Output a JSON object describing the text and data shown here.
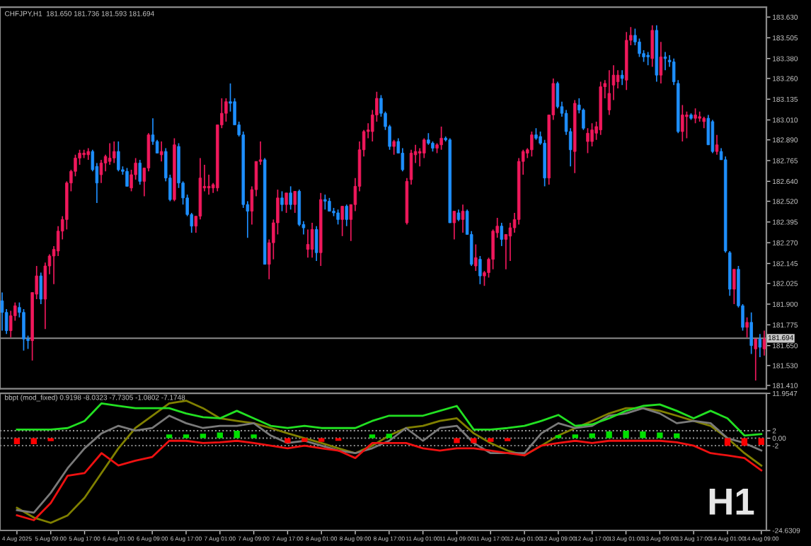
{
  "chart_data": [
    {
      "type": "candlestick",
      "title": "CHFJPY,H1  181.650 181.736 181.593 181.694",
      "tick_labels": "y",
      "categories": [
        null,
        null,
        null,
        null,
        null,
        null,
        null,
        null,
        null,
        null,
        null,
        null,
        null,
        null,
        null,
        null,
        null,
        null,
        null,
        null,
        null,
        null,
        null,
        null,
        null,
        null,
        null,
        null,
        null,
        null,
        null,
        null,
        null,
        null,
        null,
        null,
        null,
        null,
        null,
        null,
        null,
        null,
        null,
        null,
        null,
        null,
        null,
        null,
        null,
        null,
        null,
        null,
        null,
        null,
        null,
        null,
        null,
        null,
        null,
        null,
        null,
        null,
        null,
        null,
        null,
        null,
        null,
        null,
        null,
        null,
        null,
        null,
        null,
        null,
        null,
        null,
        null,
        null,
        null,
        null,
        null,
        null,
        null,
        null,
        null,
        null,
        null,
        null,
        null,
        null,
        null,
        null,
        null,
        null,
        null,
        null,
        null,
        null,
        null,
        null,
        null,
        null,
        null,
        null,
        null,
        null,
        null,
        null,
        null,
        null,
        null,
        null,
        null,
        null,
        null,
        null,
        null,
        null,
        null,
        null,
        null,
        null,
        null,
        null,
        null,
        null,
        null,
        null,
        null,
        null,
        null,
        null,
        null,
        null,
        null,
        null,
        null,
        null,
        null,
        null,
        null,
        null,
        null,
        null,
        null,
        null,
        null,
        null,
        null,
        null,
        null,
        null,
        null,
        null,
        null,
        null,
        null,
        null,
        null,
        null,
        null,
        null,
        null,
        null,
        null,
        null,
        null,
        null,
        null,
        null,
        null,
        null,
        null,
        null,
        null,
        null,
        null,
        null
      ],
      "ohlc": [
        [
          181.92,
          181.97,
          181.74,
          181.85
        ],
        [
          181.85,
          181.87,
          181.72,
          181.74
        ],
        [
          181.74,
          181.86,
          181.7,
          181.83
        ],
        [
          181.83,
          181.91,
          181.8,
          181.89
        ],
        [
          181.88,
          181.91,
          181.82,
          181.85
        ],
        [
          181.85,
          181.87,
          181.62,
          181.69
        ],
        [
          181.69,
          181.71,
          181.63,
          181.68
        ],
        [
          181.68,
          181.97,
          181.56,
          181.97
        ],
        [
          181.96,
          182.13,
          181.93,
          182.07
        ],
        [
          182.07,
          182.09,
          181.9,
          181.93
        ],
        [
          181.93,
          182.15,
          181.75,
          182.13
        ],
        [
          182.13,
          182.2,
          182.08,
          182.19
        ],
        [
          182.19,
          182.25,
          182.02,
          182.23
        ],
        [
          182.22,
          182.37,
          182.19,
          182.34
        ],
        [
          182.34,
          182.43,
          182.29,
          182.41
        ],
        [
          182.41,
          182.64,
          182.35,
          182.63
        ],
        [
          182.63,
          182.71,
          182.58,
          182.7
        ],
        [
          182.7,
          182.8,
          182.67,
          182.78
        ],
        [
          182.78,
          182.83,
          182.74,
          182.81
        ],
        [
          182.8,
          182.83,
          182.78,
          182.81
        ],
        [
          182.8,
          182.84,
          182.77,
          182.82
        ],
        [
          182.82,
          182.83,
          182.7,
          182.71
        ],
        [
          182.73,
          182.75,
          182.51,
          182.63
        ],
        [
          182.68,
          182.77,
          182.63,
          182.75
        ],
        [
          182.75,
          182.8,
          182.7,
          182.79
        ],
        [
          182.76,
          182.87,
          182.74,
          182.78
        ],
        [
          182.78,
          182.88,
          182.75,
          182.82
        ],
        [
          182.82,
          182.88,
          182.7,
          182.71
        ],
        [
          182.71,
          182.73,
          182.68,
          182.7
        ],
        [
          182.7,
          182.72,
          182.61,
          182.61
        ],
        [
          182.6,
          182.71,
          182.58,
          182.68
        ],
        [
          182.68,
          182.78,
          182.65,
          182.75
        ],
        [
          182.75,
          182.77,
          182.62,
          182.64
        ],
        [
          182.64,
          182.72,
          182.55,
          182.72
        ],
        [
          182.72,
          182.93,
          182.7,
          182.92
        ],
        [
          182.92,
          183.02,
          182.86,
          182.88
        ],
        [
          182.88,
          182.89,
          182.81,
          182.81
        ],
        [
          182.8,
          182.88,
          182.76,
          182.82
        ],
        [
          182.82,
          182.84,
          182.64,
          182.66
        ],
        [
          182.66,
          182.68,
          182.52,
          182.53
        ],
        [
          182.53,
          182.9,
          182.52,
          182.86
        ],
        [
          182.85,
          182.87,
          182.6,
          182.63
        ],
        [
          182.63,
          182.64,
          182.5,
          182.54
        ],
        [
          182.54,
          182.56,
          182.43,
          182.44
        ],
        [
          182.44,
          182.45,
          182.33,
          182.37
        ],
        [
          182.37,
          182.43,
          182.33,
          182.43
        ],
        [
          182.43,
          182.78,
          182.41,
          182.66
        ],
        [
          182.6,
          182.74,
          182.58,
          182.61
        ],
        [
          182.6,
          182.68,
          182.56,
          182.61
        ],
        [
          182.6,
          182.63,
          182.57,
          182.62
        ],
        [
          182.6,
          182.98,
          182.58,
          182.98
        ],
        [
          182.98,
          183.14,
          182.96,
          183.05
        ],
        [
          183.05,
          183.14,
          183.0,
          183.12
        ],
        [
          183.12,
          183.23,
          183.06,
          183.11
        ],
        [
          183.12,
          183.14,
          182.98,
          182.98
        ],
        [
          182.98,
          183.0,
          182.91,
          182.92
        ],
        [
          182.92,
          182.94,
          182.48,
          182.5
        ],
        [
          182.5,
          182.52,
          182.3,
          182.46
        ],
        [
          182.46,
          182.61,
          182.38,
          182.59
        ],
        [
          182.59,
          182.76,
          182.55,
          182.76
        ],
        [
          182.76,
          182.88,
          182.74,
          182.77
        ],
        [
          182.77,
          182.78,
          182.14,
          182.14
        ],
        [
          182.14,
          182.29,
          182.05,
          182.27
        ],
        [
          182.27,
          182.41,
          182.17,
          182.39
        ],
        [
          182.39,
          182.59,
          182.32,
          182.54
        ],
        [
          182.54,
          182.58,
          182.46,
          182.5
        ],
        [
          182.5,
          182.57,
          182.45,
          182.57
        ],
        [
          182.57,
          182.61,
          182.47,
          182.5
        ],
        [
          182.5,
          182.58,
          182.45,
          182.58
        ],
        [
          182.58,
          182.59,
          182.37,
          182.38
        ],
        [
          182.38,
          182.4,
          182.32,
          182.36
        ],
        [
          182.23,
          182.35,
          182.18,
          182.26
        ],
        [
          182.23,
          182.39,
          182.18,
          182.35
        ],
        [
          182.35,
          182.37,
          182.16,
          182.21
        ],
        [
          182.21,
          182.57,
          182.13,
          182.53
        ],
        [
          182.53,
          182.56,
          182.47,
          182.52
        ],
        [
          182.52,
          182.54,
          182.46,
          182.46
        ],
        [
          182.46,
          182.48,
          182.43,
          182.45
        ],
        [
          182.45,
          182.47,
          182.38,
          182.41
        ],
        [
          182.41,
          182.49,
          182.31,
          182.49
        ],
        [
          182.49,
          182.5,
          182.37,
          182.41
        ],
        [
          182.41,
          182.5,
          182.28,
          182.5
        ],
        [
          182.5,
          182.66,
          182.46,
          182.61
        ],
        [
          182.61,
          182.88,
          182.58,
          182.83
        ],
        [
          182.83,
          182.95,
          182.79,
          182.94
        ],
        [
          182.94,
          182.99,
          182.9,
          182.95
        ],
        [
          182.94,
          183.07,
          182.88,
          183.04
        ],
        [
          183.04,
          183.18,
          183.0,
          183.14
        ],
        [
          183.14,
          183.16,
          183.03,
          183.05
        ],
        [
          183.05,
          183.06,
          182.95,
          182.97
        ],
        [
          182.97,
          182.98,
          182.83,
          182.85
        ],
        [
          182.85,
          182.89,
          182.8,
          182.88
        ],
        [
          182.88,
          182.9,
          182.81,
          182.81
        ],
        [
          182.81,
          182.84,
          182.7,
          182.71
        ],
        [
          182.39,
          182.66,
          182.38,
          182.64
        ],
        [
          182.65,
          182.83,
          182.62,
          182.81
        ],
        [
          182.8,
          182.86,
          182.75,
          182.82
        ],
        [
          182.81,
          182.84,
          182.73,
          182.82
        ],
        [
          182.81,
          182.9,
          182.78,
          182.89
        ],
        [
          182.89,
          182.93,
          182.86,
          182.87
        ],
        [
          182.87,
          182.88,
          182.82,
          182.84
        ],
        [
          182.84,
          182.87,
          182.81,
          182.86
        ],
        [
          182.86,
          182.97,
          182.83,
          182.9
        ],
        [
          182.9,
          182.91,
          182.88,
          182.89
        ],
        [
          182.89,
          182.9,
          182.39,
          182.39
        ],
        [
          182.39,
          182.46,
          182.29,
          182.46
        ],
        [
          182.45,
          182.47,
          182.4,
          182.41
        ],
        [
          182.41,
          182.5,
          182.33,
          182.46
        ],
        [
          182.46,
          182.47,
          182.32,
          182.32
        ],
        [
          182.32,
          182.34,
          182.13,
          182.14
        ],
        [
          182.13,
          182.26,
          182.1,
          182.18
        ],
        [
          182.17,
          182.19,
          182.02,
          182.07
        ],
        [
          182.07,
          182.1,
          182.01,
          182.09
        ],
        [
          182.09,
          182.18,
          182.06,
          182.17
        ],
        [
          182.17,
          182.35,
          182.11,
          182.34
        ],
        [
          182.33,
          182.42,
          182.3,
          182.37
        ],
        [
          182.37,
          182.39,
          182.25,
          182.29
        ],
        [
          182.29,
          182.32,
          182.11,
          182.32
        ],
        [
          182.31,
          182.39,
          182.16,
          182.36
        ],
        [
          182.36,
          182.45,
          182.33,
          182.41
        ],
        [
          182.41,
          182.78,
          182.38,
          182.76
        ],
        [
          182.76,
          182.83,
          182.68,
          182.82
        ],
        [
          182.81,
          182.84,
          182.78,
          182.83
        ],
        [
          182.83,
          182.94,
          182.79,
          182.92
        ],
        [
          182.92,
          182.96,
          182.89,
          182.9
        ],
        [
          182.91,
          182.94,
          182.86,
          182.87
        ],
        [
          182.87,
          182.89,
          182.61,
          182.66
        ],
        [
          182.66,
          183.04,
          182.62,
          183.04
        ],
        [
          183.04,
          183.26,
          183.01,
          183.23
        ],
        [
          183.23,
          183.24,
          183.08,
          183.09
        ],
        [
          183.09,
          183.12,
          183.03,
          183.05
        ],
        [
          183.05,
          183.07,
          182.92,
          182.94
        ],
        [
          182.94,
          182.96,
          182.73,
          182.83
        ],
        [
          182.82,
          183.13,
          182.69,
          183.11
        ],
        [
          183.1,
          183.14,
          183.05,
          183.07
        ],
        [
          183.07,
          183.08,
          182.95,
          182.96
        ],
        [
          182.88,
          182.96,
          182.81,
          182.93
        ],
        [
          182.88,
          182.99,
          182.85,
          182.95
        ],
        [
          182.93,
          183.0,
          182.89,
          182.97
        ],
        [
          182.95,
          183.24,
          182.92,
          183.21
        ],
        [
          183.21,
          183.25,
          183.14,
          183.23
        ],
        [
          183.07,
          183.31,
          183.04,
          183.17
        ],
        [
          183.22,
          183.34,
          183.13,
          183.28
        ],
        [
          183.24,
          183.31,
          183.2,
          183.28
        ],
        [
          183.28,
          183.31,
          183.22,
          183.26
        ],
        [
          183.25,
          183.54,
          183.19,
          183.49
        ],
        [
          183.49,
          183.57,
          183.46,
          183.52
        ],
        [
          183.52,
          183.56,
          183.46,
          183.48
        ],
        [
          183.48,
          183.5,
          183.39,
          183.41
        ],
        [
          183.41,
          183.43,
          183.36,
          183.39
        ],
        [
          183.4,
          183.42,
          183.34,
          183.39
        ],
        [
          183.38,
          183.58,
          183.33,
          183.55
        ],
        [
          183.55,
          183.58,
          183.24,
          183.28
        ],
        [
          183.28,
          183.48,
          183.23,
          183.39
        ],
        [
          183.39,
          183.42,
          183.31,
          183.38
        ],
        [
          183.37,
          183.4,
          183.33,
          183.36
        ],
        [
          183.36,
          183.38,
          183.22,
          183.24
        ],
        [
          183.23,
          183.25,
          182.93,
          182.94
        ],
        [
          182.94,
          183.1,
          182.88,
          183.04
        ],
        [
          183.03,
          183.06,
          182.9,
          183.04
        ],
        [
          183.04,
          183.05,
          183.01,
          183.02
        ],
        [
          183.02,
          183.08,
          182.99,
          183.04
        ],
        [
          183.02,
          183.06,
          183.0,
          183.03
        ],
        [
          183.0,
          183.03,
          182.96,
          183.02
        ],
        [
          183.02,
          183.04,
          182.86,
          182.86
        ],
        [
          183.0,
          183.01,
          182.81,
          182.82
        ],
        [
          182.82,
          182.92,
          182.8,
          182.86
        ],
        [
          182.82,
          182.84,
          182.77,
          182.77
        ],
        [
          182.77,
          182.79,
          182.21,
          182.22
        ],
        [
          182.21,
          182.22,
          181.95,
          181.99
        ],
        [
          181.99,
          182.11,
          181.9,
          182.11
        ],
        [
          182.11,
          182.13,
          181.88,
          181.89
        ],
        [
          181.89,
          181.9,
          181.74,
          181.76
        ],
        [
          181.76,
          181.82,
          181.7,
          181.79
        ],
        [
          181.79,
          181.85,
          181.6,
          181.65
        ],
        [
          181.63,
          181.69,
          181.44,
          181.69
        ],
        [
          181.69,
          181.72,
          181.58,
          181.64
        ],
        [
          181.63,
          181.74,
          181.59,
          181.69
        ]
      ],
      "colors": [
        "#1e8fff",
        "#1e8fff",
        "#f0185c",
        "#f0185c",
        "#1e8fff",
        "#1e8fff",
        "#1e8fff",
        "#f0185c",
        "#f0185c",
        "#1e8fff",
        "#f0185c",
        "#f0185c",
        "#f0185c",
        "#f0185c",
        "#f0185c",
        "#f0185c",
        "#f0185c",
        "#f0185c",
        "#f0185c",
        "#f0185c",
        "#f0185c",
        "#1e8fff",
        "#1e8fff",
        "#f0185c",
        "#f0185c",
        "#f0185c",
        "#f0185c",
        "#1e8fff",
        "#1e8fff",
        "#1e8fff",
        "#f0185c",
        "#f0185c",
        "#1e8fff",
        "#f0185c",
        "#f0185c",
        "#1e8fff",
        "#1e8fff",
        "#f0185c",
        "#1e8fff",
        "#1e8fff",
        "#f0185c",
        "#1e8fff",
        "#1e8fff",
        "#1e8fff",
        "#1e8fff",
        "#f0185c",
        "#f0185c",
        "#f0185c",
        "#f0185c",
        "#f0185c",
        "#f0185c",
        "#f0185c",
        "#f0185c",
        "#1e8fff",
        "#1e8fff",
        "#1e8fff",
        "#1e8fff",
        "#1e8fff",
        "#f0185c",
        "#f0185c",
        "#f0185c",
        "#1e8fff",
        "#f0185c",
        "#f0185c",
        "#f0185c",
        "#1e8fff",
        "#f0185c",
        "#1e8fff",
        "#f0185c",
        "#1e8fff",
        "#1e8fff",
        "#f0185c",
        "#f0185c",
        "#1e8fff",
        "#f0185c",
        "#1e8fff",
        "#1e8fff",
        "#1e8fff",
        "#1e8fff",
        "#f0185c",
        "#1e8fff",
        "#f0185c",
        "#f0185c",
        "#f0185c",
        "#f0185c",
        "#f0185c",
        "#f0185c",
        "#f0185c",
        "#1e8fff",
        "#1e8fff",
        "#1e8fff",
        "#f0185c",
        "#1e8fff",
        "#1e8fff",
        "#f0185c",
        "#f0185c",
        "#f0185c",
        "#f0185c",
        "#f0185c",
        "#1e8fff",
        "#1e8fff",
        "#f0185c",
        "#f0185c",
        "#1e8fff",
        "#1e8fff",
        "#f0185c",
        "#1e8fff",
        "#f0185c",
        "#1e8fff",
        "#1e8fff",
        "#f0185c",
        "#1e8fff",
        "#f0185c",
        "#f0185c",
        "#f0185c",
        "#f0185c",
        "#1e8fff",
        "#f0185c",
        "#f0185c",
        "#f0185c",
        "#f0185c",
        "#f0185c",
        "#f0185c",
        "#f0185c",
        "#1e8fff",
        "#1e8fff",
        "#1e8fff",
        "#f0185c",
        "#f0185c",
        "#1e8fff",
        "#1e8fff",
        "#1e8fff",
        "#1e8fff",
        "#f0185c",
        "#1e8fff",
        "#1e8fff",
        "#f0185c",
        "#f0185c",
        "#f0185c",
        "#f0185c",
        "#f0185c",
        "#f0185c",
        "#f0185c",
        "#f0185c",
        "#1e8fff",
        "#f0185c",
        "#f0185c",
        "#1e8fff",
        "#1e8fff",
        "#1e8fff",
        "#1e8fff",
        "#f0185c",
        "#1e8fff",
        "#f0185c",
        "#1e8fff",
        "#1e8fff",
        "#1e8fff",
        "#1e8fff",
        "#f0185c",
        "#f0185c",
        "#1e8fff",
        "#f0185c",
        "#f0185c",
        "#f0185c",
        "#1e8fff",
        "#1e8fff",
        "#f0185c",
        "#1e8fff",
        "#1e8fff",
        "#1e8fff",
        "#f0185c",
        "#1e8fff",
        "#1e8fff",
        "#f0185c",
        "#1e8fff",
        "#f0185c",
        "#1e8fff",
        "#f0185c"
      ],
      "ylim": [
        181.39,
        183.69
      ],
      "yticks": [
        {
          "value": 183.63,
          "label": "183.630"
        },
        {
          "value": 183.505,
          "label": "183.505"
        },
        {
          "value": 183.38,
          "label": "183.380"
        },
        {
          "value": 183.26,
          "label": "183.260"
        },
        {
          "value": 183.135,
          "label": "183.135"
        },
        {
          "value": 183.01,
          "label": "183.010"
        },
        {
          "value": 182.89,
          "label": "182.890"
        },
        {
          "value": 182.765,
          "label": "182.765"
        },
        {
          "value": 182.64,
          "label": "182.640"
        },
        {
          "value": 182.52,
          "label": "182.520"
        },
        {
          "value": 182.395,
          "label": "182.395"
        },
        {
          "value": 182.27,
          "label": "182.270"
        },
        {
          "value": 182.145,
          "label": "182.145"
        },
        {
          "value": 182.025,
          "label": "182.025"
        },
        {
          "value": 181.9,
          "label": "181.900"
        },
        {
          "value": 181.775,
          "label": "181.775"
        },
        {
          "value": 181.65,
          "label": "181.650"
        },
        {
          "value": 181.53,
          "label": "181.530"
        },
        {
          "value": 181.41,
          "label": "181.410"
        }
      ],
      "ref_lines": [
        {
          "axis": "y",
          "value": 181.694,
          "label": "181.694",
          "color": "#8a8a8a",
          "line_style": "solid"
        }
      ]
    },
    {
      "type": "line",
      "title": "bbpt (mod_fixed) 0.9198 -8.0323 -7.7305 -1.0802 -7.1748",
      "categories": [
        "4 Aug 2025",
        null,
        "5 Aug 09:00",
        null,
        "5 Aug 17:00",
        null,
        "6 Aug 01:00",
        null,
        "6 Aug 09:00",
        null,
        "6 Aug 17:00",
        null,
        "7 Aug 01:00",
        null,
        "7 Aug 09:00",
        null,
        "7 Aug 17:00",
        null,
        "8 Aug 01:00",
        null,
        "8 Aug 09:00",
        null,
        "8 Aug 17:00",
        null,
        "11 Aug 01:00",
        null,
        "11 Aug 09:00",
        null,
        "11 Aug 17:00",
        null,
        "12 Aug 01:00",
        null,
        "12 Aug 09:00",
        null,
        "12 Aug 17:00",
        null,
        "13 Aug 01:00",
        null,
        "13 Aug 09:00",
        null,
        "13 Aug 17:00",
        null,
        "14 Aug 01:00",
        null,
        "14 Aug 09:00"
      ],
      "series": [
        {
          "type": "bar",
          "values": [
            -1.6,
            -1.6,
            -0.8,
            null,
            null,
            null,
            null,
            null,
            null,
            1.0,
            1.0,
            1.2,
            1.5,
            2.0,
            1.0,
            null,
            -1.3,
            -1.0,
            -1.0,
            -0.7,
            null,
            1.0,
            1.2,
            null,
            null,
            null,
            -1.3,
            -1.3,
            -1.0,
            -0.8,
            null,
            null,
            0.8,
            1.0,
            1.3,
            1.8,
            2.0,
            1.8,
            1.5,
            1.3,
            null,
            null,
            -2.0,
            -2.0,
            -1.8
          ],
          "colors": [
            "#ff0000",
            "#ff0000",
            "#ff0000",
            null,
            null,
            null,
            null,
            null,
            null,
            "#00e000",
            "#00e000",
            "#00e000",
            "#00e000",
            "#00e000",
            "#00e000",
            null,
            "#ff0000",
            "#ff0000",
            "#ff0000",
            "#ff0000",
            null,
            "#00e000",
            "#00e000",
            null,
            null,
            null,
            "#ff0000",
            "#ff0000",
            "#ff0000",
            "#ff0000",
            null,
            null,
            "#00e000",
            "#00e000",
            "#00e000",
            "#00e000",
            "#00e000",
            "#00e000",
            "#00e000",
            "#00e000",
            null,
            null,
            "#ff0000",
            "#ff0000",
            "#ff0000"
          ]
        },
        {
          "type": "line",
          "color": "#808000",
          "values": [
            -18.6,
            -21.2,
            -22.6,
            -20.6,
            -15.9,
            -9.3,
            -2.7,
            2.7,
            6.0,
            9.3,
            10.0,
            8.0,
            5.3,
            4.6,
            4.0,
            2.7,
            1.3,
            0,
            -1.3,
            -2.7,
            -4.0,
            -2.0,
            0.7,
            2.7,
            3.3,
            4.6,
            5.3,
            1.3,
            -1.3,
            -3.3,
            -4.6,
            -2.0,
            0.7,
            2.7,
            4.6,
            6.6,
            8.0,
            8.0,
            7.3,
            6.0,
            4.6,
            3.3,
            0,
            -4.0,
            -7.3
          ]
        },
        {
          "type": "line",
          "color": "#7a7a7a",
          "values": [
            -19.2,
            -19.9,
            -14.6,
            -8.0,
            -2.7,
            1.3,
            3.3,
            2.0,
            2.7,
            6.0,
            4.0,
            2.7,
            3.3,
            3.3,
            4.0,
            0.7,
            -1.3,
            -0.7,
            -2.0,
            -3.3,
            -4.0,
            -2.7,
            -0.7,
            2.7,
            -0.7,
            2.7,
            3.3,
            -1.3,
            -4.0,
            -4.0,
            -4.0,
            1.3,
            4.0,
            2.7,
            3.3,
            6.0,
            6.6,
            8.0,
            6.6,
            4.0,
            4.6,
            4.0,
            0,
            -1.3,
            -3.3
          ]
        },
        {
          "type": "line",
          "color": "#22e022",
          "values": [
            2.3,
            2.3,
            2.3,
            2.7,
            4.6,
            9.3,
            8.6,
            8.0,
            8.0,
            8.0,
            6.6,
            5.6,
            5.3,
            7.3,
            5.3,
            3.3,
            2.7,
            3.3,
            2.7,
            2.7,
            2.7,
            4.6,
            6.0,
            6.0,
            6.0,
            7.3,
            8.6,
            2.3,
            2.3,
            2.7,
            3.3,
            4.6,
            6.2,
            3.3,
            3.7,
            5.3,
            7.3,
            8.6,
            9.0,
            7.3,
            5.3,
            7.3,
            5.3,
            0.7,
            1.1
          ]
        },
        {
          "type": "line",
          "color": "#ee1111",
          "values": [
            -20.6,
            -21.9,
            -17.3,
            -10.0,
            -9.3,
            -4.0,
            -7.3,
            -6.0,
            -5.0,
            -0.7,
            -0.7,
            -1.3,
            -1.1,
            -0.7,
            -1.3,
            -2.0,
            -2.7,
            -2.0,
            -2.7,
            -3.3,
            -5.3,
            -1.3,
            -1.3,
            -1.3,
            -2.7,
            -3.3,
            -2.7,
            -2.7,
            -3.3,
            -4.0,
            -4.6,
            -2.0,
            -1.3,
            -0.7,
            -1.3,
            -0.7,
            -0.7,
            -0.7,
            -0.7,
            -1.1,
            -2.0,
            -4.0,
            -4.6,
            -5.3,
            -8.6
          ]
        }
      ],
      "ylim": [
        -24.6309,
        11.9547
      ],
      "yticks": [
        {
          "value": 11.9547,
          "label": "11.9547"
        },
        {
          "value": 2,
          "label": "2"
        },
        {
          "value": 0,
          "label": "0.00"
        },
        {
          "value": -2,
          "label": "-2"
        },
        {
          "value": -24.6309,
          "label": "-24.6309"
        }
      ],
      "ref_lines": [
        {
          "axis": "y",
          "value": 2,
          "color": "#a0a0a0",
          "line_style": "dotted"
        },
        {
          "axis": "y",
          "value": 0,
          "color": "#a0a0a0",
          "line_style": "dotted"
        },
        {
          "axis": "y",
          "value": -2,
          "color": "#a0a0a0",
          "line_style": "dotted"
        }
      ],
      "annotations": [
        "H1"
      ]
    }
  ]
}
